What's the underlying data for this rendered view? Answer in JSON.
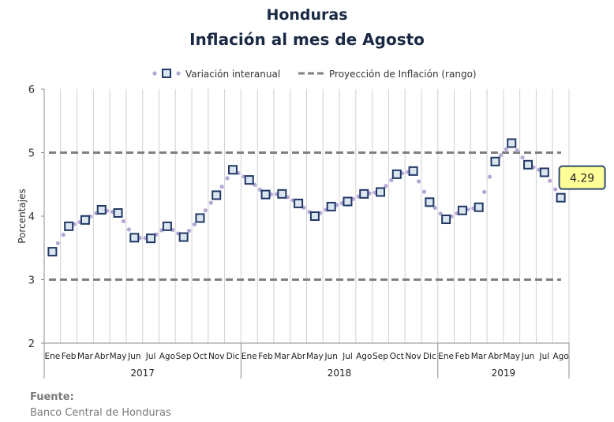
{
  "chart_data": {
    "type": "line",
    "title": "Honduras",
    "subtitle": "Inflación al mes de Agosto",
    "ylabel": "Porcentajes",
    "ylim": [
      2,
      6
    ],
    "yticks": [
      2,
      3,
      4,
      5,
      6
    ],
    "grid": "vertical",
    "legend_placement": "top",
    "colors": {
      "series": "#1f3864",
      "marker_fill": "#dce6f1",
      "dots": "#b4a7d6",
      "projection": "#7f7f7f",
      "callout_fill": "#ffff99"
    },
    "month_labels": [
      "Ene",
      "Feb",
      "Mar",
      "Abr",
      "May",
      "Jun",
      "Jul",
      "Ago",
      "Sep",
      "Oct",
      "Nov",
      "Dic",
      "Ene",
      "Feb",
      "Mar",
      "Abr",
      "May",
      "Jun",
      "Jul",
      "Ago",
      "Sep",
      "Oct",
      "Nov",
      "Dic",
      "Ene",
      "Feb",
      "Mar",
      "Abr",
      "May",
      "Jun",
      "Jul",
      "Ago"
    ],
    "year_groups": [
      {
        "label": "2017",
        "start": 0,
        "end": 11
      },
      {
        "label": "2018",
        "start": 12,
        "end": 23
      },
      {
        "label": "2019",
        "start": 24,
        "end": 31
      }
    ],
    "series": [
      {
        "name": "Variación interanual",
        "values": [
          3.44,
          3.84,
          3.94,
          4.1,
          4.05,
          3.66,
          3.65,
          3.84,
          3.67,
          3.97,
          4.33,
          4.73,
          4.57,
          4.34,
          4.35,
          4.2,
          4.0,
          4.15,
          4.23,
          4.35,
          4.38,
          4.66,
          4.71,
          4.22,
          3.95,
          4.09,
          4.14,
          4.86,
          5.15,
          4.81,
          4.69,
          4.29
        ]
      },
      {
        "name": "Proyección de Inflación (rango)",
        "upper": 5.0,
        "lower": 3.0
      }
    ],
    "callout": {
      "text": "4.29",
      "index": 31
    }
  },
  "source": {
    "label": "Fuente:",
    "value": "Banco Central de Honduras"
  }
}
